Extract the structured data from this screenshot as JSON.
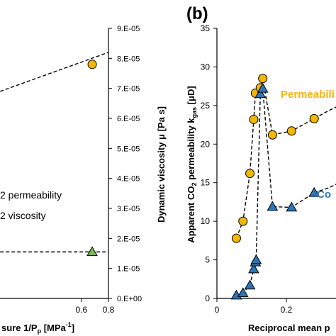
{
  "chart_data": [
    {
      "panel": "left",
      "type": "line",
      "xlabel": "sure 1/P",
      "xlabel_sub": "p",
      "xlabel_unit": "[MPa",
      "xlabel_sup": "-1",
      "xlabel_close": "]",
      "xlim": [
        0,
        0.8
      ],
      "x_ticks": [
        "0.6",
        "0.8"
      ],
      "ylabel": "Dynamic viscosity μ [Pa s]",
      "y2lim": [
        0,
        9e-05
      ],
      "y2_ticks": [
        "0.E+00",
        "1.E-05",
        "2.E-05",
        "3.E-05",
        "4.E-05",
        "5.E-05",
        "6.E-05",
        "7.E-05",
        "8.E-05",
        "9.E-05"
      ],
      "legend_entries": [
        "2 permeability",
        "2 viscosity"
      ],
      "legend_position": "middle-left",
      "series": [
        {
          "label_ref": "2 permeability",
          "color": "#f2b705",
          "marker": "circle",
          "x": [
            0.68
          ],
          "y": [
            7.8e-05
          ],
          "line_x": [
            0.0,
            0.8
          ],
          "line_y": [
            6.9e-05,
            8.2e-05
          ]
        },
        {
          "label_ref": "2 viscosity",
          "color": "#77b84f",
          "marker": "triangle",
          "x": [
            0.68
          ],
          "y": [
            1.55e-05
          ],
          "line_x": [
            0.0,
            0.8
          ],
          "line_y": [
            1.55e-05,
            1.55e-05
          ]
        }
      ]
    },
    {
      "panel": "right",
      "panel_label": "(b)",
      "type": "line",
      "xlabel": "Reciprocal mean p",
      "xlim": [
        0,
        0.4
      ],
      "x_ticks": [
        "0",
        "0.2"
      ],
      "ylabel_pre": "Apparent CO",
      "ylabel_sub": "2",
      "ylabel_mid": " permeability k",
      "ylabel_sub2": "gas",
      "ylabel_post": " [μD]",
      "ylim": [
        0,
        35
      ],
      "y_ticks": [
        "0",
        "5",
        "10",
        "15",
        "20",
        "25",
        "30",
        "35"
      ],
      "grid": false,
      "series": [
        {
          "name": "Permeabili",
          "color": "#f2b705",
          "marker": "circle",
          "x": [
            0.056,
            0.075,
            0.095,
            0.106,
            0.111,
            0.125,
            0.132,
            0.16,
            0.215,
            0.28
          ],
          "y": [
            7.8,
            10.0,
            16.2,
            23.2,
            26.6,
            27.3,
            28.5,
            21.2,
            21.7,
            23.3
          ],
          "trail_x": [
            0.32,
            0.4
          ],
          "trail_y": [
            24.3,
            26.0
          ]
        },
        {
          "name": "Co",
          "color": "#2e75b6",
          "marker": "triangle",
          "x": [
            0.056,
            0.075,
            0.095,
            0.106,
            0.111,
            0.113,
            0.125,
            0.132,
            0.16,
            0.215,
            0.28
          ],
          "y": [
            0.4,
            0.7,
            1.7,
            3.8,
            4.7,
            5.0,
            26.5,
            27.2,
            11.9,
            11.8,
            13.7
          ],
          "trail_x": [
            0.32,
            0.4
          ],
          "trail_y": [
            14.3,
            16.0
          ]
        }
      ]
    }
  ]
}
